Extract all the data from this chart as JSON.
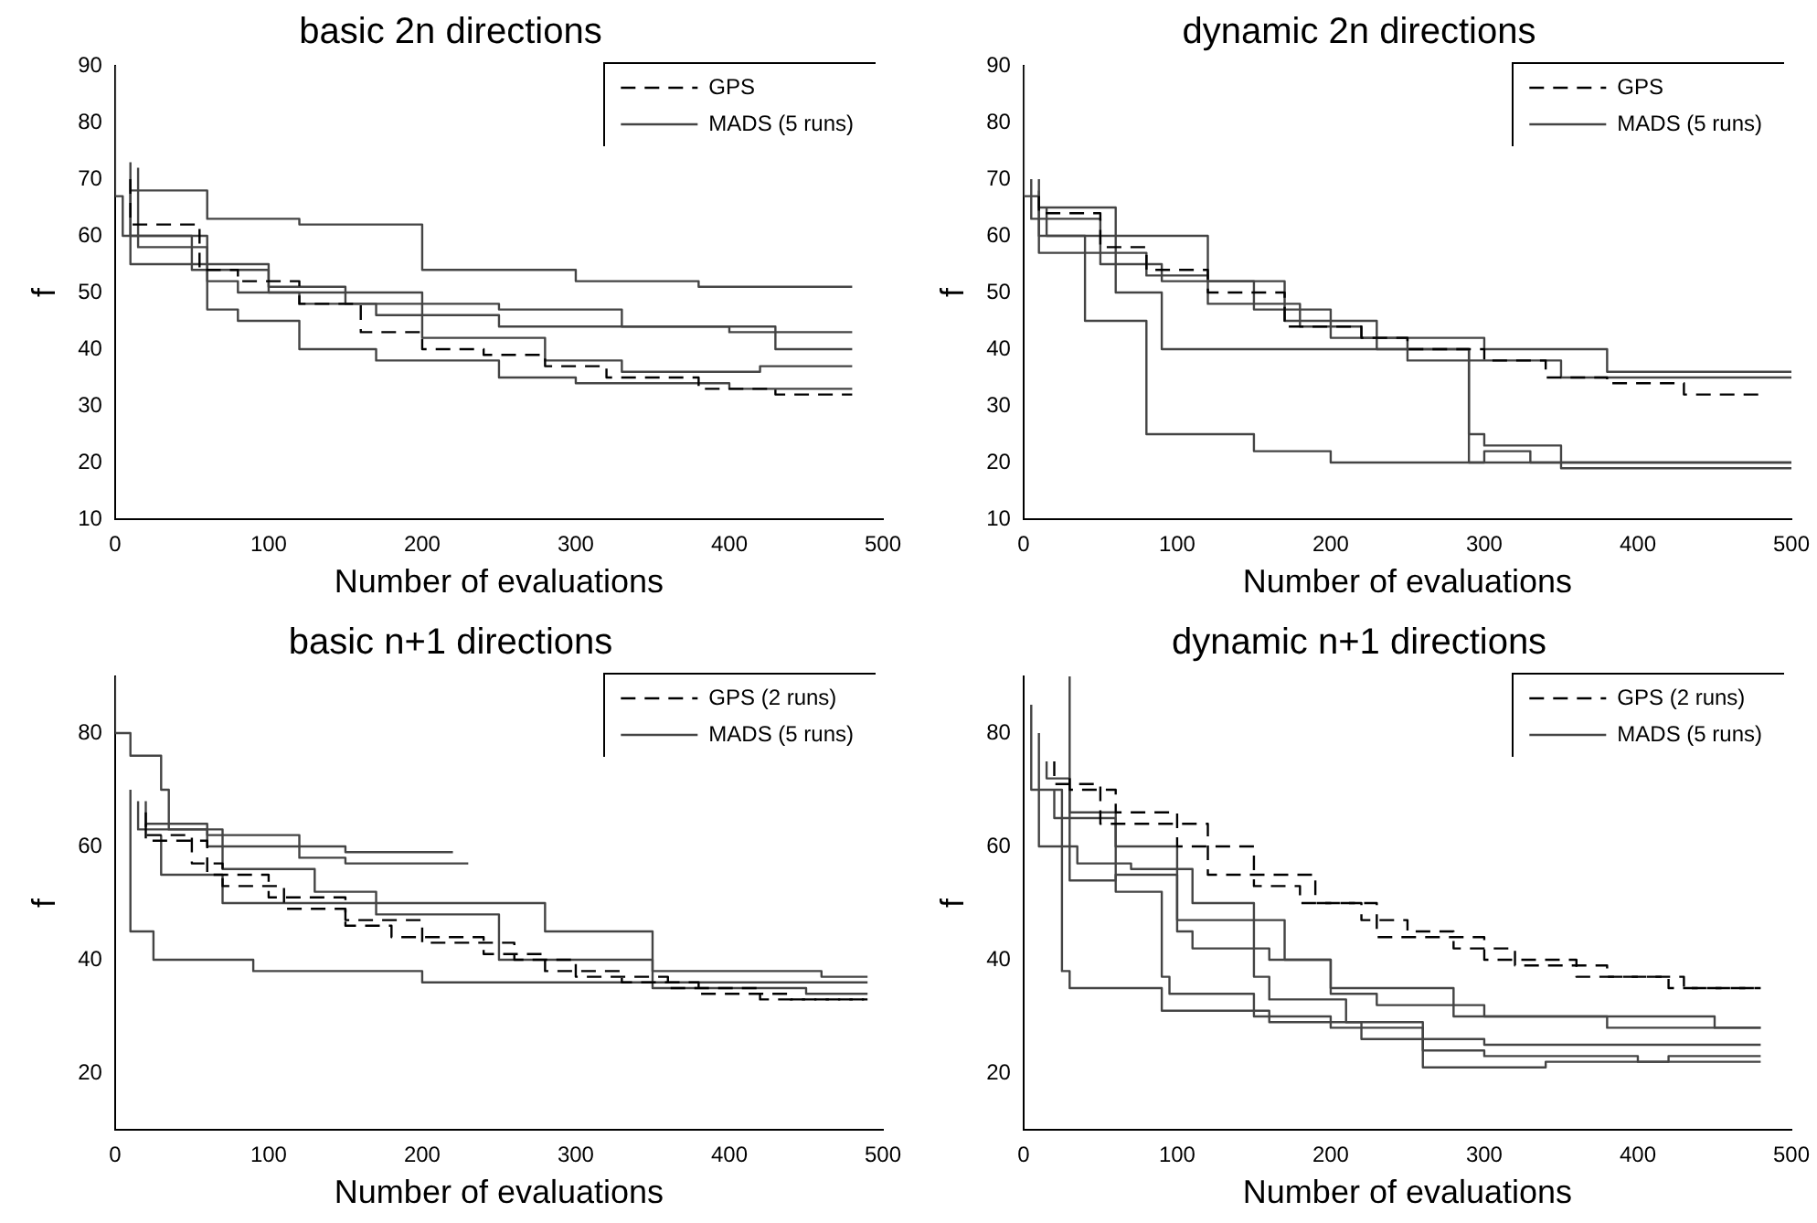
{
  "chart_data": [
    {
      "type": "step",
      "title": "basic 2n directions",
      "xlabel": "Number of evaluations",
      "ylabel": "f",
      "xlim": [
        0,
        500
      ],
      "xticks": [
        0,
        100,
        200,
        300,
        400,
        500
      ],
      "ylim": [
        10,
        90
      ],
      "yticks": [
        10,
        20,
        30,
        40,
        50,
        60,
        70,
        80,
        90
      ],
      "legend": "top right",
      "grid": false,
      "series": [
        {
          "name": "GPS",
          "color": "#000000",
          "line_style": "dashed",
          "x": [
            10,
            55,
            80,
            120,
            160,
            200,
            240,
            280,
            320,
            380,
            430,
            480
          ],
          "values": [
            70,
            62,
            54,
            52,
            48,
            43,
            40,
            39,
            37,
            35,
            33,
            32
          ]
        },
        {
          "name": "MADS (5 runs)",
          "color": "#444444",
          "line_style": "solid",
          "x": [
            0,
            5,
            60,
            80,
            120,
            170,
            250,
            400,
            480
          ],
          "values": [
            90,
            67,
            60,
            52,
            50,
            48,
            46,
            44,
            43
          ]
        },
        {
          "color": "#444444",
          "line_style": "solid",
          "x": [
            10,
            60,
            120,
            200,
            300,
            380,
            480
          ],
          "values": [
            73,
            68,
            63,
            62,
            54,
            52,
            51
          ]
        },
        {
          "color": "#444444",
          "line_style": "solid",
          "x": [
            15,
            60,
            100,
            150,
            250,
            330,
            430,
            480
          ],
          "values": [
            72,
            58,
            55,
            51,
            48,
            47,
            44,
            40
          ]
        },
        {
          "color": "#444444",
          "line_style": "solid",
          "x": [
            10,
            60,
            80,
            120,
            170,
            250,
            300,
            400,
            480
          ],
          "values": [
            68,
            55,
            47,
            45,
            40,
            38,
            35,
            34,
            33
          ]
        },
        {
          "color": "#444444",
          "line_style": "solid",
          "x": [
            10,
            50,
            100,
            200,
            280,
            330,
            420,
            480
          ],
          "values": [
            70,
            60,
            54,
            50,
            42,
            38,
            36,
            37
          ]
        }
      ]
    },
    {
      "type": "step",
      "title": "dynamic 2n directions",
      "xlabel": "Number of evaluations",
      "ylabel": "f",
      "xlim": [
        0,
        500
      ],
      "xticks": [
        0,
        100,
        200,
        300,
        400,
        500
      ],
      "ylim": [
        10,
        90
      ],
      "yticks": [
        10,
        20,
        30,
        40,
        50,
        60,
        70,
        80,
        90
      ],
      "legend": "top right",
      "grid": false,
      "series": [
        {
          "name": "GPS",
          "color": "#000000",
          "line_style": "dashed",
          "x": [
            10,
            50,
            80,
            120,
            170,
            220,
            250,
            300,
            340,
            380,
            430,
            480
          ],
          "values": [
            67,
            64,
            58,
            54,
            50,
            44,
            42,
            40,
            38,
            35,
            34,
            32
          ]
        },
        {
          "name": "MADS (5 runs)",
          "color": "#444444",
          "line_style": "solid",
          "x": [
            0,
            10,
            60,
            90,
            140,
            290,
            300,
            500
          ],
          "values": [
            90,
            67,
            60,
            50,
            40,
            40,
            20,
            20
          ]
        },
        {
          "color": "#444444",
          "line_style": "solid",
          "x": [
            5,
            50,
            90,
            150,
            200,
            250,
            350,
            500
          ],
          "values": [
            70,
            63,
            55,
            52,
            47,
            42,
            38,
            35
          ]
        },
        {
          "color": "#444444",
          "line_style": "solid",
          "x": [
            15,
            40,
            80,
            150,
            200,
            300,
            330,
            500
          ],
          "values": [
            65,
            60,
            45,
            25,
            22,
            20,
            22,
            20
          ]
        },
        {
          "color": "#444444",
          "line_style": "solid",
          "x": [
            10,
            80,
            120,
            180,
            220,
            300,
            380,
            500
          ],
          "values": [
            68,
            57,
            53,
            48,
            44,
            42,
            40,
            36
          ]
        },
        {
          "color": "#444444",
          "line_style": "solid",
          "x": [
            10,
            60,
            120,
            170,
            230,
            290,
            300,
            350,
            450,
            500
          ],
          "values": [
            70,
            65,
            60,
            52,
            45,
            40,
            25,
            23,
            19,
            19
          ]
        }
      ]
    },
    {
      "type": "step",
      "title": "basic n+1 directions",
      "xlabel": "Number of evaluations",
      "ylabel": "f",
      "xlim": [
        0,
        500
      ],
      "xticks": [
        0,
        100,
        200,
        300,
        400,
        500
      ],
      "ylim": [
        10,
        90
      ],
      "yticks": [
        20,
        40,
        60,
        80
      ],
      "legend": "top right",
      "grid": false,
      "series": [
        {
          "name": "GPS (2 runs)",
          "color": "#000000",
          "line_style": "dashed",
          "x": [
            20,
            50,
            70,
            110,
            150,
            180,
            240,
            280,
            330,
            380,
            440,
            490
          ],
          "values": [
            66,
            62,
            57,
            53,
            49,
            46,
            44,
            41,
            38,
            36,
            34,
            33
          ]
        },
        {
          "color": "#000000",
          "line_style": "dashed",
          "x": [
            20,
            60,
            100,
            150,
            200,
            260,
            300,
            360,
            420,
            490
          ],
          "values": [
            64,
            61,
            55,
            51,
            47,
            43,
            40,
            37,
            35,
            33
          ]
        },
        {
          "name": "MADS (5 runs)",
          "color": "#444444",
          "line_style": "solid",
          "x": [
            0,
            10,
            30,
            35,
            60,
            150,
            220
          ],
          "values": [
            90,
            80,
            76,
            70,
            63,
            60,
            59
          ]
        },
        {
          "color": "#444444",
          "line_style": "solid",
          "x": [
            20,
            60,
            120,
            150,
            230
          ],
          "values": [
            68,
            64,
            62,
            58,
            57
          ]
        },
        {
          "color": "#444444",
          "line_style": "solid",
          "x": [
            30,
            70,
            200,
            280,
            350,
            460,
            490
          ],
          "values": [
            62,
            55,
            50,
            50,
            45,
            38,
            37
          ]
        },
        {
          "color": "#444444",
          "line_style": "solid",
          "x": [
            10,
            25,
            60,
            90,
            200,
            490
          ],
          "values": [
            70,
            45,
            40,
            40,
            38,
            36
          ]
        },
        {
          "color": "#444444",
          "line_style": "solid",
          "x": [
            15,
            70,
            130,
            170,
            250,
            350,
            450,
            490
          ],
          "values": [
            68,
            63,
            56,
            52,
            48,
            40,
            35,
            34
          ]
        }
      ]
    },
    {
      "type": "step",
      "title": "dynamic n+1 directions",
      "xlabel": "Number of evaluations",
      "ylabel": "f",
      "xlim": [
        0,
        500
      ],
      "xticks": [
        0,
        100,
        200,
        300,
        400,
        500
      ],
      "ylim": [
        10,
        90
      ],
      "yticks": [
        20,
        40,
        60,
        80
      ],
      "legend": "top right",
      "grid": false,
      "series": [
        {
          "name": "GPS (2 runs)",
          "color": "#000000",
          "line_style": "dashed",
          "x": [
            30,
            60,
            100,
            150,
            180,
            220,
            250,
            280,
            320,
            380,
            430,
            480
          ],
          "values": [
            72,
            70,
            66,
            60,
            53,
            50,
            47,
            45,
            42,
            39,
            37,
            35
          ]
        },
        {
          "color": "#000000",
          "line_style": "dashed",
          "x": [
            20,
            50,
            120,
            190,
            230,
            300,
            360,
            420,
            480
          ],
          "values": [
            75,
            71,
            64,
            55,
            50,
            44,
            40,
            37,
            35
          ]
        },
        {
          "name": "MADS (5 runs)",
          "color": "#444444",
          "line_style": "solid",
          "x": [
            5,
            25,
            30,
            90,
            160,
            220,
            300,
            480
          ],
          "values": [
            85,
            70,
            38,
            35,
            31,
            29,
            26,
            25
          ]
        },
        {
          "color": "#444444",
          "line_style": "solid",
          "x": [
            10,
            30,
            60,
            100,
            110,
            160,
            200,
            230,
            300,
            450,
            480
          ],
          "values": [
            80,
            60,
            54,
            55,
            45,
            42,
            40,
            34,
            32,
            30,
            28
          ]
        },
        {
          "color": "#444444",
          "line_style": "solid",
          "x": [
            30,
            35,
            70,
            110,
            150,
            160,
            210,
            260,
            300,
            400,
            480
          ],
          "values": [
            90,
            60,
            57,
            56,
            50,
            37,
            33,
            29,
            24,
            23,
            22
          ]
        },
        {
          "color": "#444444",
          "line_style": "solid",
          "x": [
            15,
            30,
            60,
            90,
            95,
            150,
            200,
            260,
            280,
            340,
            420,
            480
          ],
          "values": [
            75,
            72,
            66,
            52,
            37,
            34,
            30,
            28,
            21,
            21,
            22,
            23
          ]
        },
        {
          "color": "#444444",
          "line_style": "solid",
          "x": [
            20,
            60,
            100,
            170,
            200,
            280,
            380,
            480
          ],
          "values": [
            70,
            65,
            60,
            47,
            40,
            35,
            30,
            28
          ]
        }
      ]
    }
  ]
}
